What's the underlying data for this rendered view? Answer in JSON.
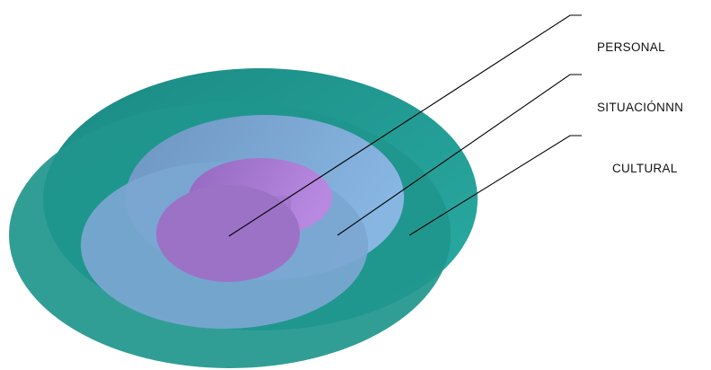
{
  "labels": {
    "personal": "PERSONAL",
    "situacion": "SITUACIÓNNN",
    "cultural": "CULTURAL"
  },
  "colors": {
    "cultural_front": "#1f968d",
    "cultural_side": "#2bb5ad",
    "situacion_front": "#7ba7d2",
    "situacion_side": "#8fbde6",
    "personal_front": "#9c72c7",
    "personal_side": "#b786de",
    "leader_lines": "#000000",
    "text": "#111111"
  }
}
